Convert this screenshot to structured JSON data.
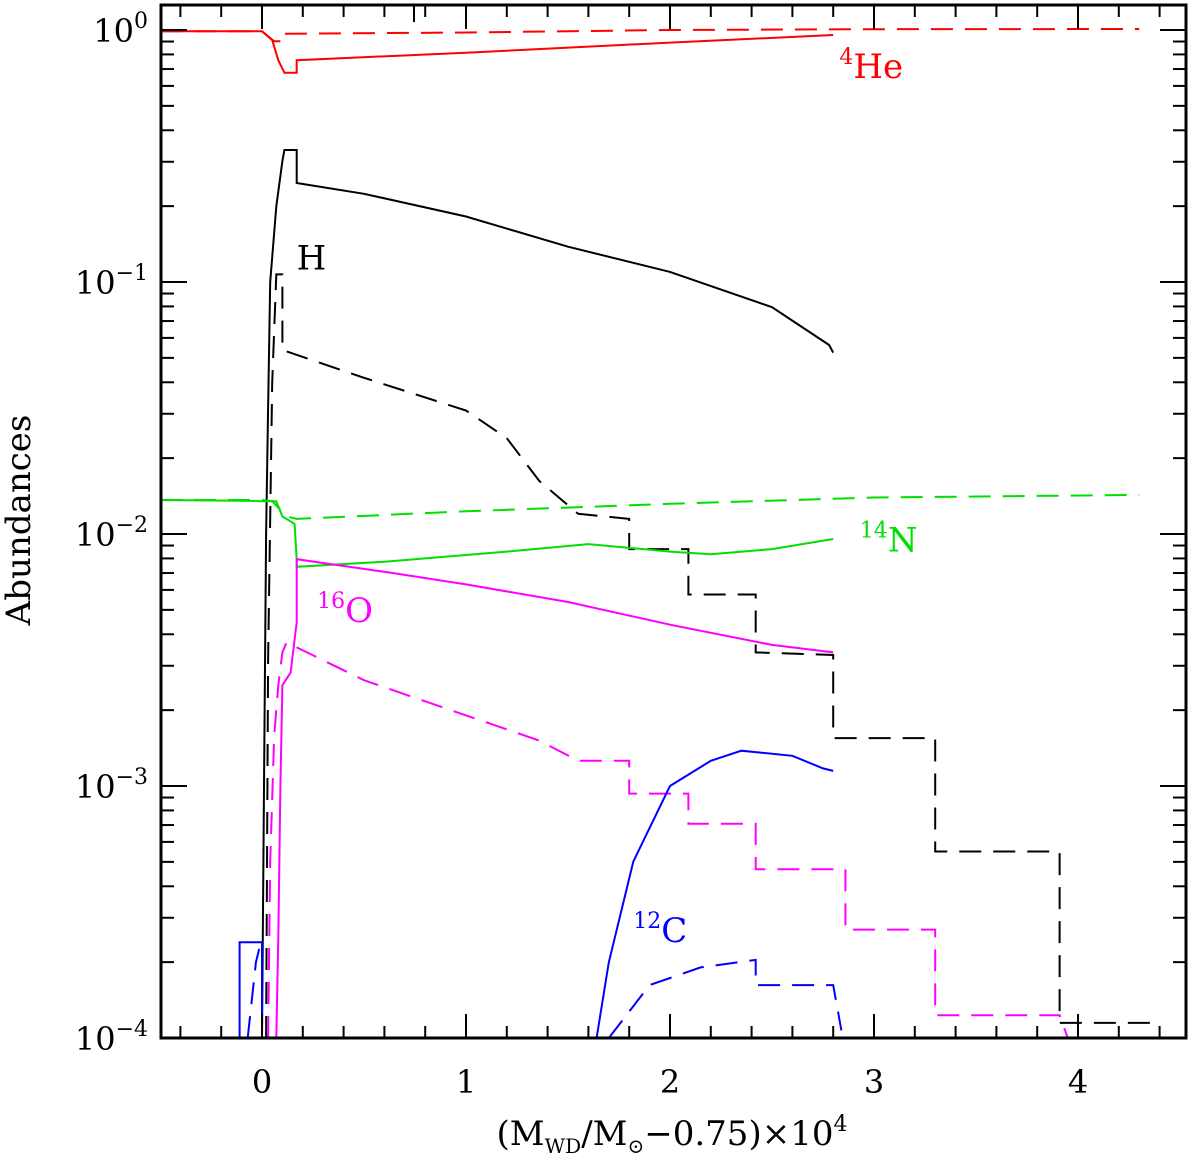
{
  "chart_data": {
    "type": "line",
    "xlabel": "(M_WD/M_⊙−0.75)×10⁴",
    "xlabel_parts": {
      "pre": "(M",
      "sub1": "WD",
      "mid": "/M",
      "sub2": "⊙",
      "post": "−0.75)×10",
      "sup": "4"
    },
    "ylabel": "Abundances",
    "xlim": [
      -0.5,
      4.52
    ],
    "ylim_log10": [
      -4,
      0.1
    ],
    "yscale": "log",
    "x_ticks": [
      "0",
      "1",
      "2",
      "3",
      "4"
    ],
    "x_tick_values": [
      0,
      1,
      2,
      3,
      4
    ],
    "y_ticks": [
      {
        "base": "10",
        "exp": "0",
        "value_log10": 0
      },
      {
        "base": "10",
        "exp": "−1",
        "value_log10": -1
      },
      {
        "base": "10",
        "exp": "−2",
        "value_log10": -2
      },
      {
        "base": "10",
        "exp": "−3",
        "value_log10": -3
      },
      {
        "base": "10",
        "exp": "−4",
        "value_log10": -4
      }
    ],
    "annotations": [
      {
        "sup": "4",
        "text": "He",
        "color": "#ff0000",
        "x": 2.83,
        "y_log10": -0.19
      },
      {
        "sup": "",
        "text": "H",
        "color": "#000000",
        "x": 0.17,
        "y_log10": -0.95
      },
      {
        "sup": "14",
        "text": "N",
        "color": "#00e000",
        "x": 2.93,
        "y_log10": -2.07
      },
      {
        "sup": "16",
        "text": "O",
        "color": "#ff00ff",
        "x": 0.27,
        "y_log10": -2.35
      },
      {
        "sup": "12",
        "text": "C",
        "color": "#0000ff",
        "x": 1.82,
        "y_log10": -3.62
      }
    ],
    "series": [
      {
        "name": "He solid",
        "color": "#ff0000",
        "dash": false,
        "points_log10": [
          [
            -0.5,
            -0.005
          ],
          [
            0,
            -0.005
          ],
          [
            0.05,
            -0.04
          ],
          [
            0.08,
            -0.12
          ],
          [
            0.11,
            -0.17
          ],
          [
            0.17,
            -0.17
          ],
          [
            0.17,
            -0.12
          ],
          [
            1,
            -0.09
          ],
          [
            2,
            -0.05
          ],
          [
            2.8,
            -0.02
          ]
        ]
      },
      {
        "name": "He dashed",
        "color": "#ff0000",
        "dash": true,
        "points_log10": [
          [
            -0.5,
            -0.005
          ],
          [
            0,
            -0.005
          ],
          [
            0.06,
            -0.045
          ],
          [
            0.1,
            -0.045
          ],
          [
            0.1,
            -0.015
          ],
          [
            1,
            -0.01
          ],
          [
            2,
            0
          ],
          [
            3,
            0.003
          ],
          [
            4.3,
            0.004
          ]
        ]
      },
      {
        "name": "H solid",
        "color": "#000000",
        "dash": false,
        "points_log10": [
          [
            0,
            -4
          ],
          [
            0.01,
            -3
          ],
          [
            0.02,
            -2
          ],
          [
            0.03,
            -1.5
          ],
          [
            0.04,
            -1.0
          ],
          [
            0.07,
            -0.7
          ],
          [
            0.1,
            -0.52
          ],
          [
            0.11,
            -0.476
          ],
          [
            0.17,
            -0.476
          ],
          [
            0.17,
            -0.607
          ],
          [
            0.5,
            -0.65
          ],
          [
            1,
            -0.74
          ],
          [
            1.5,
            -0.86
          ],
          [
            2,
            -0.96
          ],
          [
            2.5,
            -1.1
          ],
          [
            2.78,
            -1.25
          ],
          [
            2.8,
            -1.28
          ]
        ]
      },
      {
        "name": "H dashed",
        "color": "#000000",
        "dash": true,
        "points_log10": [
          [
            0.02,
            -4
          ],
          [
            0.03,
            -2.5
          ],
          [
            0.05,
            -1.4
          ],
          [
            0.07,
            -0.97
          ],
          [
            0.1,
            -0.97
          ],
          [
            0.1,
            -1.27
          ],
          [
            0.5,
            -1.38
          ],
          [
            1,
            -1.51
          ],
          [
            1.2,
            -1.62
          ],
          [
            1.36,
            -1.79
          ],
          [
            1.55,
            -1.92
          ],
          [
            1.8,
            -1.94
          ],
          [
            1.8,
            -2.06
          ],
          [
            2.09,
            -2.06
          ],
          [
            2.09,
            -2.24
          ],
          [
            2.42,
            -2.24
          ],
          [
            2.42,
            -2.47
          ],
          [
            2.8,
            -2.48
          ],
          [
            2.8,
            -2.81
          ],
          [
            3.3,
            -2.81
          ],
          [
            3.3,
            -3.26
          ],
          [
            3.91,
            -3.26
          ],
          [
            3.91,
            -3.94
          ],
          [
            4.4,
            -3.94
          ]
        ]
      },
      {
        "name": "14N solid",
        "color": "#00e000",
        "dash": false,
        "points_log10": [
          [
            -0.5,
            -1.865
          ],
          [
            -0.1,
            -1.868
          ],
          [
            0,
            -1.87
          ],
          [
            0.07,
            -1.87
          ],
          [
            0.1,
            -1.93
          ],
          [
            0.16,
            -1.96
          ],
          [
            0.17,
            -2.1
          ],
          [
            0.17,
            -2.13
          ],
          [
            0.6,
            -2.11
          ],
          [
            1.2,
            -2.07
          ],
          [
            1.6,
            -2.04
          ],
          [
            2,
            -2.07
          ],
          [
            2.2,
            -2.08
          ],
          [
            2.5,
            -2.06
          ],
          [
            2.8,
            -2.02
          ]
        ]
      },
      {
        "name": "14N dashed",
        "color": "#00e000",
        "dash": true,
        "points_log10": [
          [
            -0.5,
            -1.865
          ],
          [
            0,
            -1.865
          ],
          [
            0.05,
            -1.87
          ],
          [
            0.12,
            -1.93
          ],
          [
            0.17,
            -1.94
          ],
          [
            1,
            -1.91
          ],
          [
            2,
            -1.88
          ],
          [
            3,
            -1.855
          ],
          [
            4.3,
            -1.845
          ]
        ]
      },
      {
        "name": "16O solid",
        "color": "#ff00ff",
        "dash": false,
        "points_log10": [
          [
            0.07,
            -4
          ],
          [
            0.08,
            -3.6
          ],
          [
            0.09,
            -3.0
          ],
          [
            0.1,
            -2.6
          ],
          [
            0.14,
            -2.55
          ],
          [
            0.17,
            -2.35
          ],
          [
            0.17,
            -2.1
          ],
          [
            0.6,
            -2.15
          ],
          [
            1,
            -2.2
          ],
          [
            1.5,
            -2.27
          ],
          [
            2,
            -2.36
          ],
          [
            2.5,
            -2.44
          ],
          [
            2.8,
            -2.47
          ]
        ]
      },
      {
        "name": "16O dashed",
        "color": "#ff00ff",
        "dash": true,
        "points_log10": [
          [
            0.03,
            -4
          ],
          [
            0.04,
            -3.3
          ],
          [
            0.06,
            -2.8
          ],
          [
            0.08,
            -2.6
          ],
          [
            0.1,
            -2.47
          ],
          [
            0.12,
            -2.43
          ],
          [
            0.5,
            -2.58
          ],
          [
            1,
            -2.72
          ],
          [
            1.36,
            -2.82
          ],
          [
            1.55,
            -2.9
          ],
          [
            1.8,
            -2.9
          ],
          [
            1.8,
            -3.03
          ],
          [
            2.09,
            -3.03
          ],
          [
            2.09,
            -3.15
          ],
          [
            2.42,
            -3.15
          ],
          [
            2.42,
            -3.33
          ],
          [
            2.86,
            -3.33
          ],
          [
            2.86,
            -3.57
          ],
          [
            3.3,
            -3.57
          ],
          [
            3.3,
            -3.91
          ],
          [
            3.91,
            -3.91
          ],
          [
            3.95,
            -4
          ]
        ]
      },
      {
        "name": "12C solid",
        "color": "#0000ff",
        "dash": false,
        "points_log10": [
          [
            -0.11,
            -4
          ],
          [
            -0.11,
            -3.62
          ],
          [
            0,
            -3.62
          ],
          [
            0,
            -4
          ]
        ]
      },
      {
        "name": "12C solid outer",
        "color": "#0000ff",
        "dash": false,
        "points_log10": [
          [
            1.64,
            -4
          ],
          [
            1.7,
            -3.7
          ],
          [
            1.82,
            -3.3
          ],
          [
            2.0,
            -3.0
          ],
          [
            2.2,
            -2.9
          ],
          [
            2.35,
            -2.86
          ],
          [
            2.6,
            -2.88
          ],
          [
            2.75,
            -2.93
          ],
          [
            2.8,
            -2.94
          ]
        ]
      },
      {
        "name": "12C dashed",
        "color": "#0000ff",
        "dash": true,
        "points_log10": [
          [
            -0.07,
            -4
          ],
          [
            -0.03,
            -3.7
          ],
          [
            0,
            -3.6
          ]
        ]
      },
      {
        "name": "12C dashed outer",
        "color": "#0000ff",
        "dash": true,
        "points_log10": [
          [
            1.7,
            -4
          ],
          [
            1.9,
            -3.79
          ],
          [
            2.15,
            -3.72
          ],
          [
            2.42,
            -3.69
          ],
          [
            2.42,
            -3.79
          ],
          [
            2.8,
            -3.79
          ],
          [
            2.84,
            -3.97
          ]
        ]
      }
    ]
  }
}
